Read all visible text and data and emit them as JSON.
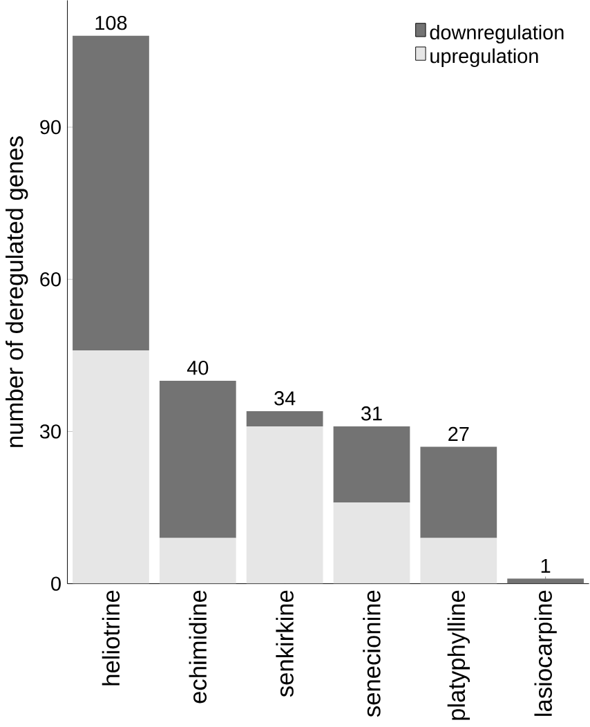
{
  "chart_data": {
    "type": "bar",
    "stacked": true,
    "ylabel": "number of deregulated genes",
    "categories": [
      "heliotrine",
      "echimidine",
      "senkirkine",
      "senecionine",
      "platyphylline",
      "lasiocarpine"
    ],
    "series": [
      {
        "name": "upregulation",
        "color": "#e6e6e6",
        "values": [
          46,
          9,
          31,
          16,
          9,
          0
        ]
      },
      {
        "name": "downregulation",
        "color": "#737373",
        "values": [
          62,
          31,
          3,
          15,
          18,
          1
        ]
      }
    ],
    "totals": [
      "108",
      "40",
      "34",
      "31",
      "27",
      "1"
    ],
    "ylim": [
      0,
      115
    ],
    "yticks": [
      0,
      30,
      60,
      90
    ],
    "legend": "top right",
    "grid": false
  }
}
